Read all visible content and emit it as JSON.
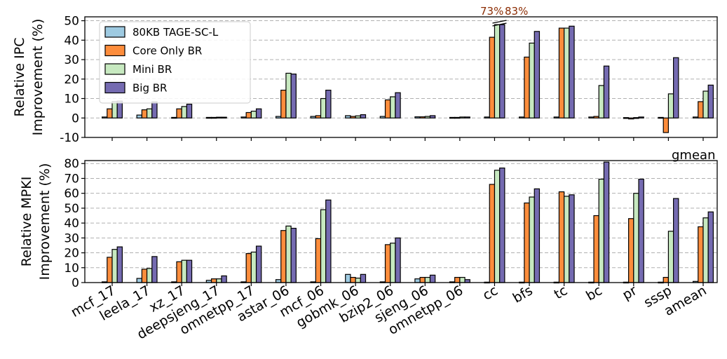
{
  "colors": {
    "tage": "#9ecae1",
    "core": "#fd8d3c",
    "mini": "#c7e9c0",
    "big": "#756bb1",
    "annotation": "#8c2d04",
    "grid": "#b0b0b0"
  },
  "legend_location": "upper-left of top panel",
  "chart_data": [
    {
      "type": "bar",
      "ylabel_lines": [
        "Relative IPC",
        "Improvement (%)"
      ],
      "ylim": [
        -10,
        52
      ],
      "yticks": [
        -10,
        0,
        10,
        20,
        30,
        40,
        50
      ],
      "grid": "horizontal dashed",
      "categories": [
        "mcf_17",
        "leela_17",
        "xz_17",
        "deepsjeng_17",
        "omnetpp_17",
        "astar_06",
        "mcf_06",
        "gobmk_06",
        "bzip2_06",
        "sjeng_06",
        "omnetpp_06",
        "cc",
        "bfs",
        "tc",
        "bc",
        "pr",
        "sssp",
        "gmean"
      ],
      "series": [
        {
          "name": "80KB TAGE-SC-L",
          "values": [
            0.5,
            1.5,
            0.3,
            0.3,
            0.5,
            0.8,
            0.8,
            1.2,
            0.8,
            0.6,
            0.3,
            0.5,
            0.5,
            0.5,
            0.5,
            0.2,
            0.3,
            0.5
          ]
        },
        {
          "name": "Core Only BR",
          "values": [
            4.7,
            4.2,
            4.7,
            0.3,
            2.8,
            14.3,
            1.2,
            0.8,
            9.3,
            0.6,
            0.3,
            41.5,
            31.3,
            46.2,
            0.8,
            -0.5,
            -7.5,
            8.4
          ]
        },
        {
          "name": "Mini BR",
          "values": [
            8.5,
            4.7,
            5.9,
            0.4,
            3.5,
            23.0,
            10.0,
            1.1,
            10.9,
            0.8,
            0.5,
            48.0,
            38.5,
            46.2,
            16.7,
            0.2,
            12.4,
            13.8
          ]
        },
        {
          "name": "Big BR",
          "values": [
            8.7,
            8.3,
            7.1,
            0.4,
            4.7,
            22.6,
            14.3,
            1.7,
            13.0,
            1.2,
            0.5,
            48.0,
            44.5,
            47.2,
            26.7,
            0.5,
            31.0,
            16.9
          ]
        }
      ],
      "annotations": [
        {
          "text": "73%",
          "category": "cc",
          "series": "Mini BR"
        },
        {
          "text": "83%",
          "category": "cc",
          "series": "Big BR"
        }
      ]
    },
    {
      "type": "bar",
      "ylabel_lines": [
        "Relative MPKI",
        "Improvement (%)"
      ],
      "ylim": [
        0,
        82
      ],
      "yticks": [
        0,
        10,
        20,
        30,
        40,
        50,
        60,
        70,
        80
      ],
      "grid": "horizontal dashed",
      "categories": [
        "mcf_17",
        "leela_17",
        "xz_17",
        "deepsjeng_17",
        "omnetpp_17",
        "astar_06",
        "mcf_06",
        "gobmk_06",
        "bzip2_06",
        "sjeng_06",
        "omnetpp_06",
        "cc",
        "bfs",
        "tc",
        "bc",
        "pr",
        "sssp",
        "amean"
      ],
      "series": [
        {
          "name": "80KB TAGE-SC-L",
          "values": [
            0.5,
            2.8,
            0.5,
            1.5,
            0.5,
            2.0,
            0.5,
            5.5,
            0.5,
            2.5,
            0.5,
            0.3,
            0.3,
            0.3,
            0.3,
            0.3,
            0.3,
            0.8
          ]
        },
        {
          "name": "Core Only BR",
          "values": [
            17.0,
            9.0,
            14.0,
            2.5,
            19.5,
            35.0,
            29.5,
            3.5,
            25.5,
            3.5,
            3.5,
            66.0,
            53.5,
            61.0,
            45.0,
            43.0,
            3.5,
            37.5
          ]
        },
        {
          "name": "Mini BR",
          "values": [
            22.3,
            9.5,
            15.0,
            2.5,
            20.5,
            38.0,
            49.0,
            3.0,
            26.5,
            3.5,
            3.5,
            75.5,
            57.5,
            58.0,
            69.5,
            60.0,
            34.5,
            43.5
          ]
        },
        {
          "name": "Big BR",
          "values": [
            24.0,
            17.5,
            15.0,
            4.5,
            24.5,
            36.5,
            55.5,
            5.5,
            30.0,
            5.0,
            2.0,
            77.0,
            63.0,
            59.0,
            81.0,
            69.5,
            56.5,
            47.5
          ]
        }
      ]
    }
  ],
  "figure_labels": {
    "gmean_label": "gmean",
    "x_tick_labels": [
      "mcf_17",
      "leela_17",
      "xz_17",
      "deepsjeng_17",
      "omnetpp_17",
      "astar_06",
      "mcf_06",
      "gobmk_06",
      "bzip2_06",
      "sjeng_06",
      "omnetpp_06",
      "cc",
      "bfs",
      "tc",
      "bc",
      "pr",
      "sssp",
      "amean"
    ]
  }
}
